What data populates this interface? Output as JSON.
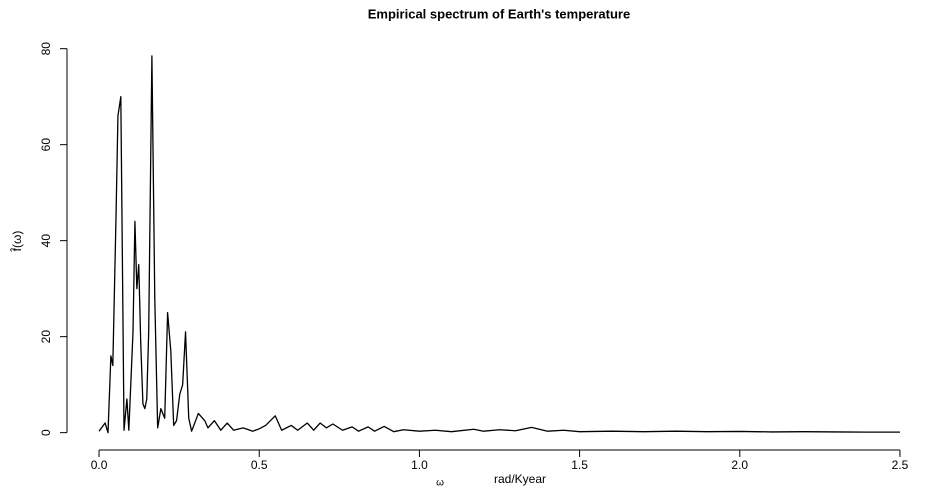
{
  "chart_data": {
    "type": "line",
    "title": "Empirical spectrum of Earth's temperature",
    "x_label_symbol": "ω",
    "x_label": "rad/Kyear",
    "y_label": "f̂(ω)",
    "color": "#000000",
    "x": [
      0.0,
      0.019,
      0.028,
      0.037,
      0.043,
      0.053,
      0.059,
      0.068,
      0.078,
      0.087,
      0.093,
      0.106,
      0.112,
      0.118,
      0.124,
      0.13,
      0.137,
      0.143,
      0.149,
      0.155,
      0.165,
      0.174,
      0.183,
      0.193,
      0.205,
      0.214,
      0.224,
      0.233,
      0.242,
      0.252,
      0.261,
      0.27,
      0.28,
      0.289,
      0.31,
      0.33,
      0.34,
      0.36,
      0.38,
      0.4,
      0.42,
      0.45,
      0.48,
      0.5,
      0.52,
      0.55,
      0.57,
      0.6,
      0.62,
      0.65,
      0.67,
      0.69,
      0.71,
      0.73,
      0.76,
      0.79,
      0.81,
      0.84,
      0.86,
      0.89,
      0.92,
      0.95,
      1.0,
      1.05,
      1.1,
      1.17,
      1.2,
      1.25,
      1.3,
      1.35,
      1.4,
      1.45,
      1.5,
      1.6,
      1.7,
      1.8,
      1.9,
      2.0,
      2.1,
      2.2,
      2.3,
      2.4,
      2.5
    ],
    "values": [
      0.3,
      2,
      0,
      16,
      14,
      45,
      66,
      70,
      0.5,
      7,
      0.5,
      21,
      44,
      30,
      35,
      19,
      6,
      5,
      7,
      21,
      78.5,
      28,
      1,
      5,
      3,
      25,
      17,
      1.5,
      2.5,
      8,
      10,
      21,
      3,
      0.3,
      4,
      2.5,
      1,
      2.5,
      0.5,
      2,
      0.5,
      1,
      0.3,
      0.8,
      1.5,
      3.5,
      0.5,
      1.5,
      0.5,
      2,
      0.5,
      2,
      1,
      1.8,
      0.5,
      1.2,
      0.3,
      1.2,
      0.3,
      1.3,
      0.2,
      0.6,
      0.3,
      0.5,
      0.2,
      0.7,
      0.3,
      0.6,
      0.4,
      1.1,
      0.3,
      0.5,
      0.2,
      0.3,
      0.2,
      0.3,
      0.2,
      0.25,
      0.15,
      0.2,
      0.15,
      0.1,
      0.1
    ],
    "xlim": [
      -0.1,
      2.6
    ],
    "xticks": [
      {
        "value": 0,
        "label": "0.0"
      },
      0.5,
      {
        "value": 1,
        "label": "1.0"
      },
      1.5,
      {
        "value": 2,
        "label": "2.0"
      },
      2.5
    ],
    "ylim": [
      -3.2,
      81.6
    ],
    "yticks": [
      0,
      20,
      40,
      60,
      80
    ]
  }
}
